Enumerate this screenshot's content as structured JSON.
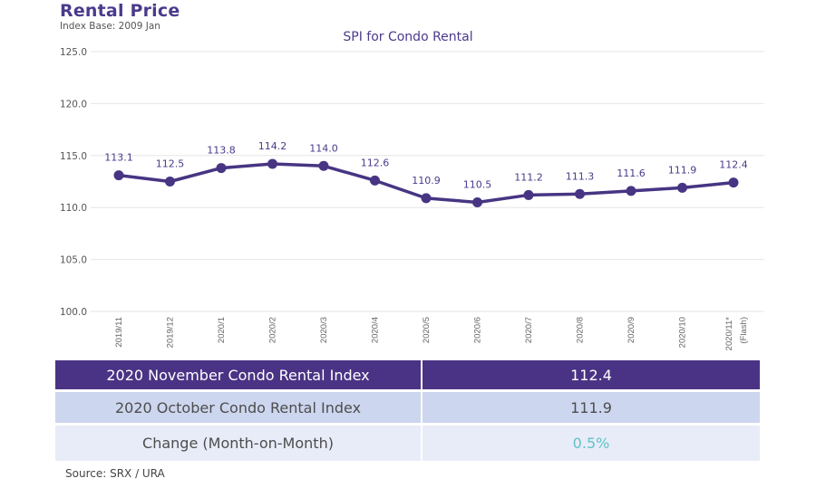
{
  "header": {
    "title": "Rental Price",
    "subtitle": "Index Base: 2009 Jan"
  },
  "chart_data": {
    "type": "line",
    "title": "SPI for Condo Rental",
    "xlabel": "",
    "ylabel": "",
    "categories": [
      "2019/11",
      "2019/12",
      "2020/1",
      "2020/2",
      "2020/3",
      "2020/4",
      "2020/5",
      "2020/6",
      "2020/7",
      "2020/8",
      "2020/9",
      "2020/10",
      "2020/11*"
    ],
    "category_notes": {
      "12": "(Flash)"
    },
    "series": [
      {
        "name": "SPI for Condo Rental",
        "values": [
          113.1,
          112.5,
          113.8,
          114.2,
          114.0,
          112.6,
          110.9,
          110.5,
          111.2,
          111.3,
          111.6,
          111.9,
          112.4
        ],
        "labels": [
          "113.1",
          "112.5",
          "113.8",
          "114.2",
          "114.0",
          "112.6",
          "110.9",
          "110.5",
          "111.2",
          "111.3",
          "111.6",
          "111.9",
          "112.4"
        ]
      }
    ],
    "ylim": [
      100,
      125
    ],
    "yticks": [
      100,
      105,
      110,
      115,
      120,
      125
    ],
    "ytick_labels": [
      "100.0",
      "105.0",
      "110.0",
      "115.0",
      "120.0",
      "125.0"
    ],
    "grid": true,
    "legend": "none",
    "line_color": "#473583"
  },
  "table": {
    "rows": [
      {
        "label": "2020 November Condo Rental Index",
        "value": "112.4"
      },
      {
        "label": "2020 October Condo Rental Index",
        "value": "111.9"
      },
      {
        "label": "Change (Month-on-Month)",
        "value": "0.5%"
      }
    ],
    "change_color": "#5fc3c6"
  },
  "source": "Source: SRX / URA"
}
